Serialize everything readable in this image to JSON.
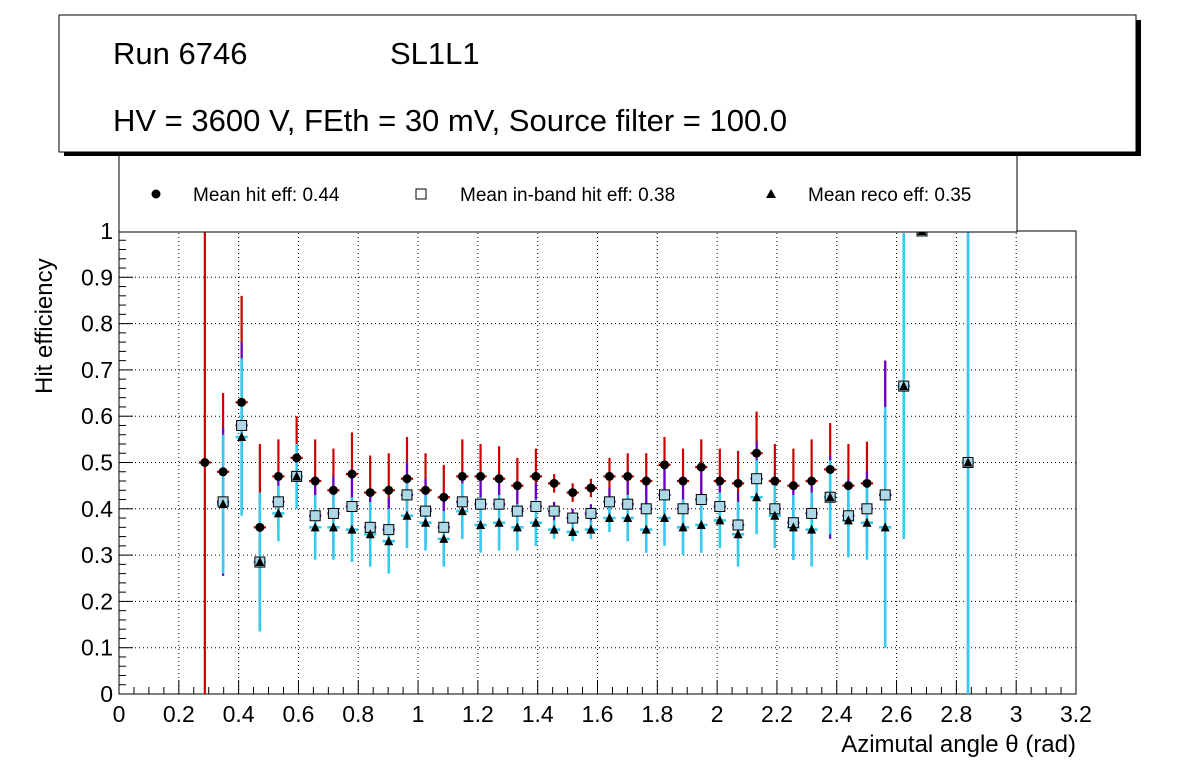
{
  "header": {
    "run_label": "Run 6746",
    "layer_label": "SL1L1",
    "conditions": "HV = 3600 V, FEth = 30 mV, Source filter = 100.0"
  },
  "legend": {
    "hit": "Mean hit  eff: 0.44",
    "inband": "Mean in-band hit eff: 0.38",
    "reco": "Mean reco eff: 0.35"
  },
  "colors": {
    "hit_marker": "#000000",
    "hit_error": "#cc0000",
    "inband_marker": "#add8e6",
    "inband_marker_edge": "#000000",
    "inband_error": "#6600cc",
    "reco_marker": "#000000",
    "reco_error": "#33ccee",
    "grid": "#000000"
  },
  "chart_data": {
    "type": "scatter",
    "title": "",
    "xlabel": "Azimutal angle θ (rad)",
    "ylabel": "Hit efficiency",
    "xlim": [
      0,
      3.2
    ],
    "ylim": [
      0,
      1
    ],
    "grid": true,
    "xticks": [
      "0",
      "0.2",
      "0.4",
      "0.6",
      "0.8",
      "1",
      "1.2",
      "1.4",
      "1.6",
      "1.8",
      "2",
      "2.2",
      "2.4",
      "2.6",
      "2.8",
      "3",
      "3.2"
    ],
    "yticks": [
      "0",
      "0.1",
      "0.2",
      "0.3",
      "0.4",
      "0.5",
      "0.6",
      "0.7",
      "0.8",
      "0.9",
      "1"
    ],
    "bin_half_width": 0.0205,
    "series": [
      {
        "name": "Mean hit  eff: 0.44",
        "marker": "circle",
        "x": [
          0.287,
          0.348,
          0.41,
          0.471,
          0.533,
          0.594,
          0.656,
          0.717,
          0.779,
          0.84,
          0.902,
          0.963,
          1.025,
          1.086,
          1.148,
          1.209,
          1.271,
          1.332,
          1.394,
          1.455,
          1.517,
          1.578,
          1.64,
          1.701,
          1.763,
          1.824,
          1.886,
          1.947,
          2.009,
          2.07,
          2.132,
          2.193,
          2.255,
          2.316,
          2.378,
          2.439,
          2.501,
          2.562,
          2.624,
          2.685,
          2.839
        ],
        "y": [
          0.5,
          0.48,
          0.63,
          0.36,
          0.47,
          0.51,
          0.46,
          0.44,
          0.475,
          0.435,
          0.44,
          0.465,
          0.44,
          0.425,
          0.47,
          0.47,
          0.465,
          0.45,
          0.47,
          0.455,
          0.435,
          0.445,
          0.47,
          0.47,
          0.46,
          0.495,
          0.46,
          0.49,
          0.46,
          0.455,
          0.52,
          0.46,
          0.45,
          0.46,
          0.485,
          0.45,
          0.455,
          0.43,
          0.665,
          1.0,
          0.5
        ],
        "err": [
          0.5,
          0.17,
          0.23,
          0.18,
          0.08,
          0.09,
          0.09,
          0.09,
          0.09,
          0.08,
          0.08,
          0.09,
          0.08,
          0.07,
          0.08,
          0.07,
          0.07,
          0.06,
          0.06,
          0.02,
          0.02,
          0.02,
          0.04,
          0.05,
          0.06,
          0.06,
          0.07,
          0.06,
          0.07,
          0.07,
          0.09,
          0.08,
          0.08,
          0.09,
          0.1,
          0.09,
          0.09,
          0.29,
          0.33,
          0.0,
          0.5
        ]
      },
      {
        "name": "Mean in-band hit eff: 0.38",
        "marker": "open-square",
        "x": [
          0.348,
          0.41,
          0.471,
          0.533,
          0.594,
          0.656,
          0.717,
          0.779,
          0.84,
          0.902,
          0.963,
          1.025,
          1.086,
          1.148,
          1.209,
          1.271,
          1.332,
          1.394,
          1.455,
          1.517,
          1.578,
          1.64,
          1.701,
          1.763,
          1.824,
          1.886,
          1.947,
          2.009,
          2.07,
          2.132,
          2.193,
          2.255,
          2.316,
          2.378,
          2.439,
          2.501,
          2.562,
          2.624,
          2.685,
          2.839
        ],
        "y": [
          0.415,
          0.58,
          0.285,
          0.415,
          0.47,
          0.385,
          0.39,
          0.405,
          0.36,
          0.355,
          0.43,
          0.395,
          0.36,
          0.415,
          0.41,
          0.41,
          0.395,
          0.405,
          0.395,
          0.38,
          0.39,
          0.415,
          0.41,
          0.4,
          0.43,
          0.4,
          0.42,
          0.405,
          0.365,
          0.465,
          0.4,
          0.37,
          0.39,
          0.425,
          0.385,
          0.4,
          0.43,
          0.665,
          1.0,
          0.5
        ],
        "err": [
          0.16,
          0.18,
          0.15,
          0.06,
          0.07,
          0.08,
          0.08,
          0.08,
          0.07,
          0.07,
          0.07,
          0.07,
          0.07,
          0.06,
          0.06,
          0.06,
          0.05,
          0.05,
          0.02,
          0.02,
          0.02,
          0.03,
          0.05,
          0.06,
          0.06,
          0.06,
          0.06,
          0.06,
          0.07,
          0.08,
          0.07,
          0.08,
          0.08,
          0.09,
          0.08,
          0.08,
          0.29,
          0.33,
          0.0,
          0.5
        ]
      },
      {
        "name": "Mean reco eff: 0.35",
        "marker": "triangle",
        "x": [
          0.348,
          0.41,
          0.471,
          0.533,
          0.594,
          0.656,
          0.717,
          0.779,
          0.84,
          0.902,
          0.963,
          1.025,
          1.086,
          1.148,
          1.209,
          1.271,
          1.332,
          1.394,
          1.455,
          1.517,
          1.578,
          1.64,
          1.701,
          1.763,
          1.824,
          1.886,
          1.947,
          2.009,
          2.07,
          2.132,
          2.193,
          2.255,
          2.316,
          2.378,
          2.439,
          2.501,
          2.562,
          2.624,
          2.685,
          2.839
        ],
        "y": [
          0.41,
          0.555,
          0.285,
          0.39,
          0.47,
          0.36,
          0.36,
          0.355,
          0.345,
          0.33,
          0.385,
          0.37,
          0.335,
          0.395,
          0.365,
          0.37,
          0.36,
          0.37,
          0.355,
          0.35,
          0.355,
          0.38,
          0.38,
          0.355,
          0.38,
          0.36,
          0.365,
          0.375,
          0.345,
          0.425,
          0.385,
          0.36,
          0.355,
          0.425,
          0.375,
          0.37,
          0.36,
          0.665,
          1.0,
          0.5
        ],
        "err": [
          0.15,
          0.17,
          0.15,
          0.06,
          0.07,
          0.07,
          0.07,
          0.07,
          0.07,
          0.07,
          0.07,
          0.06,
          0.06,
          0.06,
          0.06,
          0.06,
          0.05,
          0.05,
          0.02,
          0.02,
          0.02,
          0.03,
          0.05,
          0.05,
          0.06,
          0.06,
          0.06,
          0.06,
          0.07,
          0.08,
          0.07,
          0.07,
          0.08,
          0.08,
          0.08,
          0.08,
          0.26,
          0.33,
          0.0,
          0.5
        ]
      }
    ]
  }
}
